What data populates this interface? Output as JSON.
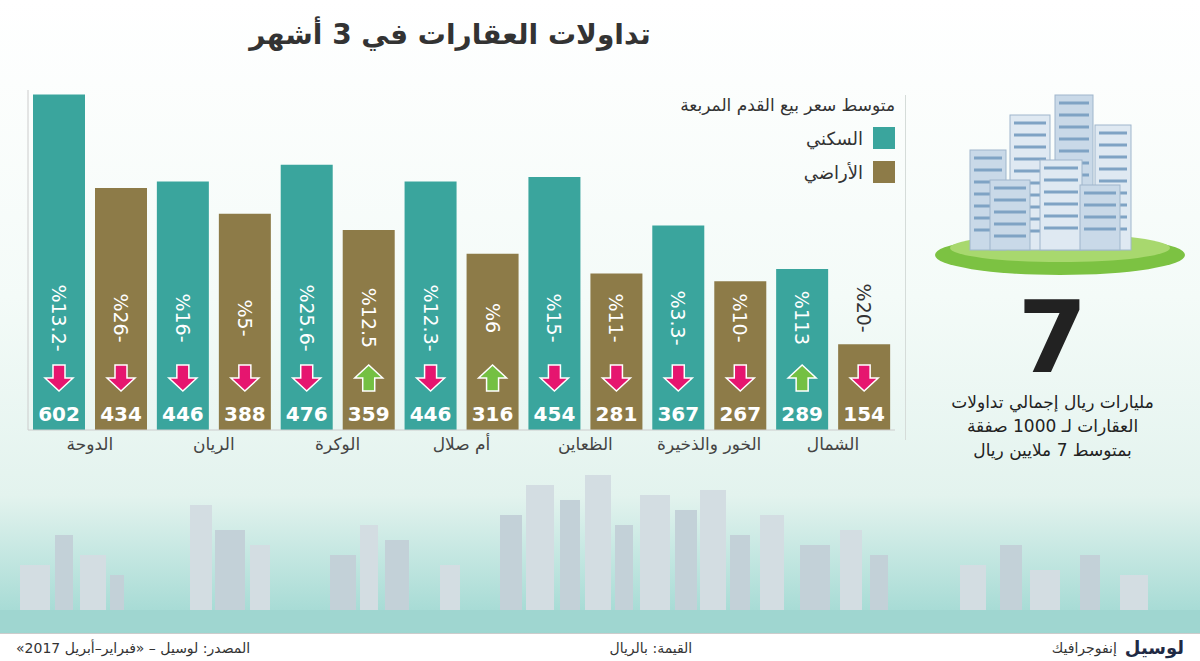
{
  "chart_data": {
    "type": "bar",
    "title": "تداولات العقارات في 3 أشهر",
    "legend_title": "متوسط سعر بيع القدم المربعة",
    "categories": [
      "الدوحة",
      "الريان",
      "الوكرة",
      "أم صلال",
      "الظعاين",
      "الخور والذخيرة",
      "الشمال"
    ],
    "series": [
      {
        "name": "السكني",
        "color": "#3aa59d",
        "values": [
          602,
          446,
          476,
          446,
          454,
          367,
          289
        ],
        "changes": [
          -13.2,
          -16,
          -25.6,
          -12.3,
          -15,
          -3.3,
          113
        ],
        "change_labels": [
          "%13.2-",
          "%16-",
          "%25.6-",
          "%12.3-",
          "%15-",
          "%3.3-",
          "%113"
        ]
      },
      {
        "name": "الأراضي",
        "color": "#8d7b48",
        "values": [
          434,
          388,
          359,
          316,
          281,
          267,
          154
        ],
        "changes": [
          -26,
          -5,
          12.5,
          6,
          -11,
          -10,
          -20
        ],
        "change_labels": [
          "%26-",
          "%5-",
          "%12.5",
          "%6",
          "%11-",
          "%10-",
          "%20-"
        ]
      }
    ],
    "ylim": [
      0,
      610
    ],
    "grid": false,
    "data_labels": true,
    "tick_labels": "x",
    "legend": "top right"
  },
  "side_panel": {
    "big_number": "7",
    "lines": [
      "مليارات ريال إجمالي تداولات",
      "العقارات لـ 1000 صفقة",
      "بمتوسط 7 ملايين ريال"
    ]
  },
  "footer": {
    "brand": "لوسيل",
    "brand_tag": "إنفوجرافيك",
    "unit_note": "القيمة: بالريال",
    "source": "المصدر: لوسيل – «فبراير–أبريل 2017»"
  }
}
